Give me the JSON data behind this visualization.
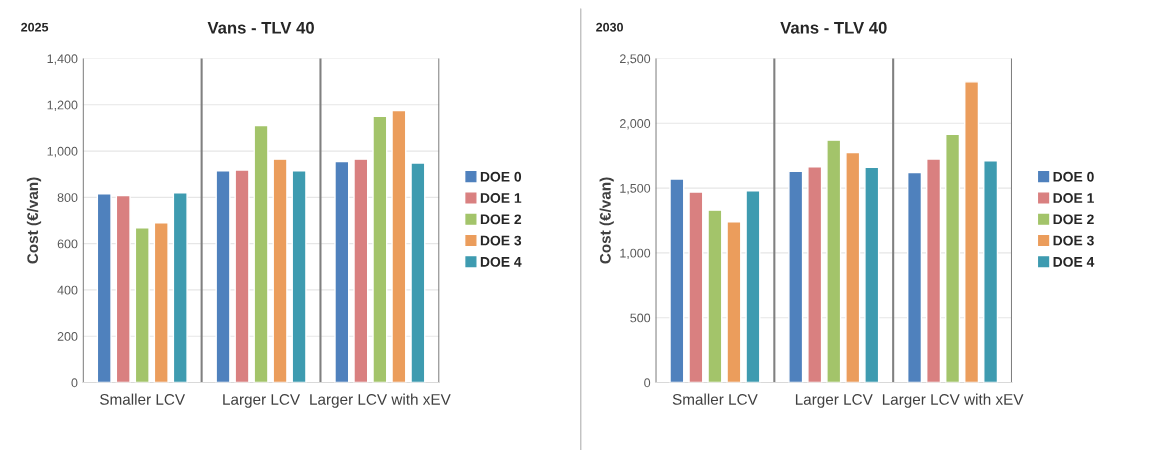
{
  "chart_data": [
    {
      "type": "bar",
      "title": "Vans - TLV 40",
      "annotations": [
        "2025"
      ],
      "ylabel": "Cost (€/van)",
      "categories": [
        "Smaller LCV",
        "Larger LCV",
        "Larger LCV with xEV"
      ],
      "series": [
        {
          "name": "DOE 0",
          "color": "#4f81bd",
          "values": [
            815,
            915,
            955
          ]
        },
        {
          "name": "DOE 1",
          "color": "#d98080",
          "values": [
            808,
            918,
            965
          ]
        },
        {
          "name": "DOE 2",
          "color": "#a3c46a",
          "values": [
            668,
            1110,
            1150
          ]
        },
        {
          "name": "DOE 3",
          "color": "#eb9d5c",
          "values": [
            690,
            965,
            1175
          ]
        },
        {
          "name": "DOE 4",
          "color": "#3e9bb0",
          "values": [
            820,
            915,
            948
          ]
        }
      ],
      "ylim": [
        0,
        1400
      ],
      "yticks": [
        0,
        200,
        400,
        600,
        800,
        {
          "value": 1000,
          "label": "1,000"
        },
        {
          "value": 1200,
          "label": "1,200"
        },
        {
          "value": 1400,
          "label": "1,400"
        }
      ],
      "grid": "y",
      "legend": "right"
    },
    {
      "type": "bar",
      "title": "Vans - TLV 40",
      "annotations": [
        "2030"
      ],
      "ylabel": "Cost (€/van)",
      "categories": [
        "Smaller LCV",
        "Larger LCV",
        "Larger LCV with xEV"
      ],
      "series": [
        {
          "name": "DOE 0",
          "color": "#4f81bd",
          "values": [
            1570,
            1630,
            1620
          ]
        },
        {
          "name": "DOE 1",
          "color": "#d98080",
          "values": [
            1470,
            1665,
            1725
          ]
        },
        {
          "name": "DOE 2",
          "color": "#a3c46a",
          "values": [
            1330,
            1870,
            1915
          ]
        },
        {
          "name": "DOE 3",
          "color": "#eb9d5c",
          "values": [
            1240,
            1775,
            2320
          ]
        },
        {
          "name": "DOE 4",
          "color": "#3e9bb0",
          "values": [
            1480,
            1660,
            1710
          ]
        }
      ],
      "ylim": [
        0,
        2500
      ],
      "yticks": [
        0,
        500,
        {
          "value": 1000,
          "label": "1,000"
        },
        {
          "value": 1500,
          "label": "1,500"
        },
        {
          "value": 2000,
          "label": "2,000"
        },
        {
          "value": 2500,
          "label": "2,500"
        }
      ],
      "grid": "y",
      "legend": "right"
    }
  ]
}
